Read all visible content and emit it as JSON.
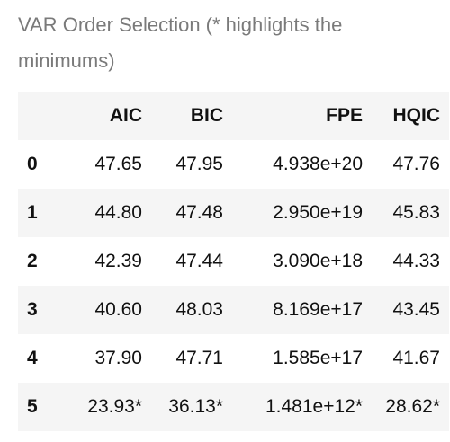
{
  "caption": {
    "line1": "VAR Order Selection (* highlights the",
    "line2": "minimums)"
  },
  "table": {
    "columns": [
      "",
      "AIC",
      "BIC",
      "FPE",
      "HQIC"
    ],
    "rows": [
      {
        "index": "0",
        "aic": "47.65",
        "bic": "47.95",
        "fpe": "4.938e+20",
        "hqic": "47.76"
      },
      {
        "index": "1",
        "aic": "44.80",
        "bic": "47.48",
        "fpe": "2.950e+19",
        "hqic": "45.83"
      },
      {
        "index": "2",
        "aic": "42.39",
        "bic": "47.44",
        "fpe": "3.090e+18",
        "hqic": "44.33"
      },
      {
        "index": "3",
        "aic": "40.60",
        "bic": "48.03",
        "fpe": "8.169e+17",
        "hqic": "43.45"
      },
      {
        "index": "4",
        "aic": "37.90",
        "bic": "47.71",
        "fpe": "1.585e+17",
        "hqic": "41.67"
      },
      {
        "index": "5",
        "aic": "23.93*",
        "bic": "36.13*",
        "fpe": "1.481e+12*",
        "hqic": "28.62*"
      }
    ]
  }
}
